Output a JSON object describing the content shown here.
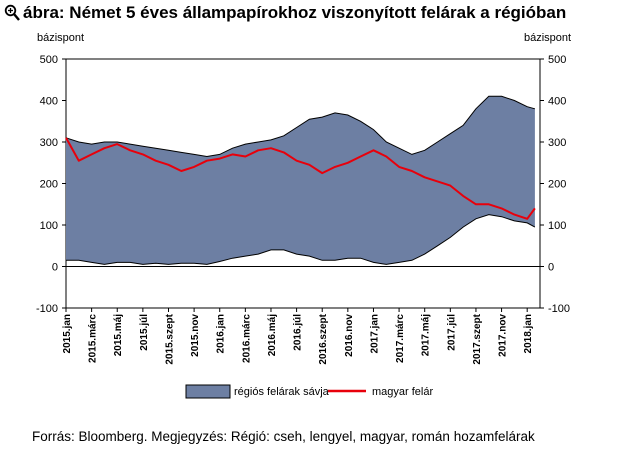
{
  "title": "ábra: Német 5 éves állampapírokhoz viszonyított felárak a régióban",
  "source_note": "Forrás: Bloomberg. Megjegyzés: Régió: cseh, lengyel, magyar, román hozamfelárak",
  "chart_data": {
    "type": "area",
    "y_unit_left": "bázispont",
    "y_unit_right": "bázispont",
    "ylim": [
      -100,
      500
    ],
    "y_ticks": [
      -100,
      0,
      100,
      200,
      300,
      400,
      500
    ],
    "x_ticks": [
      "2015.jan",
      "2015.márc",
      "2015.máj",
      "2015.júl",
      "2015.szept",
      "2015.nov",
      "2016.jan",
      "2016.márc",
      "2016.máj",
      "2016.júl",
      "2016.szept",
      "2016.nov",
      "2017.jan",
      "2017.márc",
      "2017.máj",
      "2017.júl",
      "2017.szept",
      "2017.nov",
      "2018.jan"
    ],
    "grid": false,
    "legend_position": "bottom",
    "colors": {
      "band": "#6d7fa3",
      "line": "#e8000b",
      "edge": "#000000"
    },
    "x": [
      0,
      0.5,
      1,
      1.5,
      2,
      2.5,
      3,
      3.5,
      4,
      4.5,
      5,
      5.5,
      6,
      6.5,
      7,
      7.5,
      8,
      8.5,
      9,
      9.5,
      10,
      10.5,
      11,
      11.5,
      12,
      12.5,
      13,
      13.5,
      14,
      14.5,
      15,
      15.5,
      16,
      16.5,
      17,
      17.5,
      18,
      18.3
    ],
    "series": [
      {
        "name": "régiós felárak sávja",
        "kind": "band",
        "upper": [
          310,
          300,
          295,
          300,
          300,
          295,
          290,
          285,
          280,
          275,
          270,
          265,
          270,
          285,
          295,
          300,
          305,
          315,
          335,
          355,
          360,
          370,
          365,
          350,
          330,
          300,
          285,
          270,
          280,
          300,
          320,
          340,
          380,
          410,
          410,
          400,
          385,
          380
        ],
        "lower": [
          15,
          15,
          10,
          5,
          10,
          10,
          5,
          8,
          5,
          8,
          8,
          5,
          12,
          20,
          25,
          30,
          40,
          40,
          30,
          25,
          15,
          15,
          20,
          20,
          10,
          5,
          10,
          15,
          30,
          50,
          70,
          95,
          115,
          125,
          120,
          110,
          105,
          95
        ]
      },
      {
        "name": "magyar felár",
        "kind": "line",
        "values": [
          310,
          255,
          270,
          285,
          295,
          280,
          270,
          255,
          245,
          230,
          240,
          255,
          260,
          270,
          265,
          280,
          285,
          275,
          255,
          245,
          225,
          240,
          250,
          265,
          280,
          265,
          240,
          230,
          215,
          205,
          195,
          170,
          150,
          150,
          140,
          125,
          115,
          140
        ]
      }
    ]
  }
}
